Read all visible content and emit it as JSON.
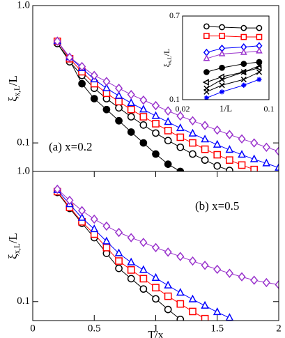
{
  "chart_data": [
    {
      "type": "line",
      "annotation": "(a) x=0.2",
      "log_y": true,
      "y_label": {
        "symbol": "ξ",
        "subscript": "x,L",
        "suffix": "/L"
      },
      "xlim": [
        0,
        2
      ],
      "ylim": [
        0.062,
        1
      ],
      "yticks": [
        {
          "value": 1,
          "label": "1.0"
        },
        0.1
      ],
      "x": [
        0.2,
        0.3,
        0.4,
        0.5,
        0.6,
        0.7,
        0.8,
        0.9,
        1.0,
        1.1,
        1.2,
        1.3,
        1.4,
        1.5,
        1.6,
        1.7,
        1.8,
        1.9,
        2.0
      ],
      "series": [
        {
          "color": "#000000",
          "marker": "circle-filled",
          "values": [
            0.53,
            0.4,
            0.27,
            0.21,
            0.175,
            0.145,
            0.12,
            0.1,
            0.083,
            0.07,
            0.062,
            null,
            null,
            null,
            null,
            null,
            null,
            null,
            null
          ]
        },
        {
          "color": "#000000",
          "marker": "circle",
          "values": [
            0.53,
            0.39,
            0.31,
            0.25,
            0.21,
            0.18,
            0.155,
            0.135,
            0.118,
            0.104,
            0.093,
            0.083,
            0.075,
            0.068,
            0.063,
            null,
            null,
            null,
            null
          ]
        },
        {
          "color": "#ff0000",
          "marker": "square",
          "values": [
            0.55,
            0.41,
            0.33,
            0.27,
            0.23,
            0.2,
            0.175,
            0.155,
            0.138,
            0.123,
            0.11,
            0.1,
            0.09,
            0.082,
            0.075,
            0.069,
            0.064,
            null,
            null
          ]
        },
        {
          "color": "#0000ff",
          "marker": "triangle",
          "values": [
            0.55,
            0.42,
            0.35,
            0.29,
            0.25,
            0.22,
            0.195,
            0.175,
            0.157,
            0.142,
            0.128,
            0.117,
            0.106,
            0.097,
            0.089,
            0.082,
            0.076,
            0.071,
            0.066
          ]
        },
        {
          "color": "#9932cc",
          "marker": "diamond",
          "values": [
            0.55,
            0.42,
            0.36,
            0.31,
            0.28,
            0.25,
            0.225,
            0.205,
            0.187,
            0.171,
            0.157,
            0.145,
            0.134,
            0.124,
            0.115,
            0.107,
            0.1,
            0.093,
            0.087
          ]
        }
      ]
    },
    {
      "type": "line",
      "annotation": "(b) x=0.5",
      "log_y": true,
      "x_label": "T/x",
      "y_label": {
        "symbol": "ξ",
        "subscript": "x,L",
        "suffix": "/L"
      },
      "xlim": [
        0,
        2
      ],
      "ylim": [
        0.0715,
        1
      ],
      "xticks": [
        0,
        0.5,
        1,
        1.5,
        2
      ],
      "yticks": [
        {
          "value": 1,
          "label": "1.0"
        },
        0.1
      ],
      "x": [
        0.2,
        0.3,
        0.4,
        0.5,
        0.6,
        0.7,
        0.8,
        0.9,
        1.0,
        1.1,
        1.2,
        1.3,
        1.4,
        1.5,
        1.6,
        1.7,
        1.8,
        1.9,
        2.0
      ],
      "series": [
        {
          "color": "#000000",
          "marker": "circle",
          "values": [
            0.69,
            0.52,
            0.4,
            0.31,
            0.235,
            0.18,
            0.15,
            0.125,
            0.105,
            0.087,
            0.073,
            null,
            null,
            null,
            null,
            null,
            null,
            null,
            null
          ]
        },
        {
          "color": "#ff0000",
          "marker": "square",
          "values": [
            0.7,
            0.53,
            0.41,
            0.33,
            0.26,
            0.205,
            0.175,
            0.15,
            0.128,
            0.11,
            0.096,
            0.084,
            0.074,
            null,
            null,
            null,
            null,
            null,
            null
          ]
        },
        {
          "color": "#0000ff",
          "marker": "triangle",
          "values": [
            0.72,
            0.56,
            0.44,
            0.36,
            0.29,
            0.235,
            0.2,
            0.175,
            0.152,
            0.133,
            0.117,
            0.104,
            0.093,
            0.083,
            0.075,
            null,
            null,
            null,
            null
          ]
        },
        {
          "color": "#9932cc",
          "marker": "diamond",
          "values": [
            0.73,
            0.6,
            0.5,
            0.43,
            0.38,
            0.34,
            0.31,
            0.285,
            0.26,
            0.24,
            0.222,
            0.205,
            0.19,
            0.177,
            0.165,
            0.155,
            0.146,
            0.14,
            0.135
          ]
        }
      ]
    },
    {
      "type": "line",
      "log_x": true,
      "log_y": true,
      "x_label": "1/L",
      "y_label": {
        "symbol": "ξ",
        "subscript": "x,L",
        "suffix": "/L"
      },
      "xlim": [
        0.02,
        0.1
      ],
      "ylim": [
        0.1,
        0.7
      ],
      "xticks": [
        0.02,
        0.1
      ],
      "yticks": [
        0.7,
        0.1
      ],
      "x": [
        0.03125,
        0.04167,
        0.0625,
        0.08333
      ],
      "series": [
        {
          "color": "#000000",
          "marker": "circle",
          "values": [
            0.55,
            0.54,
            0.53,
            0.53
          ]
        },
        {
          "color": "#ff0000",
          "marker": "square",
          "values": [
            0.44,
            0.44,
            0.43,
            0.43
          ]
        },
        {
          "color": "#0000ff",
          "marker": "diamond",
          "values": [
            0.3,
            0.33,
            0.34,
            0.35
          ]
        },
        {
          "color": "#9932cc",
          "marker": "triangle",
          "values": [
            0.26,
            0.29,
            0.3,
            0.31
          ]
        },
        {
          "color": "#000000",
          "marker": "circle-filled",
          "values": [
            0.19,
            0.21,
            0.23,
            0.24
          ]
        },
        {
          "color": "#000000",
          "marker": "triangle-left",
          "values": [
            0.15,
            0.17,
            0.19,
            0.21
          ]
        },
        {
          "color": "#000000",
          "marker": "x",
          "values": [
            0.13,
            0.16,
            0.19,
            0.22
          ]
        },
        {
          "color": "#000000",
          "marker": "x",
          "values": [
            0.12,
            0.14,
            0.16,
            0.19
          ]
        },
        {
          "color": "#0000ff",
          "marker": "star",
          "values": [
            0.104,
            0.12,
            0.14,
            0.16
          ]
        }
      ]
    }
  ]
}
